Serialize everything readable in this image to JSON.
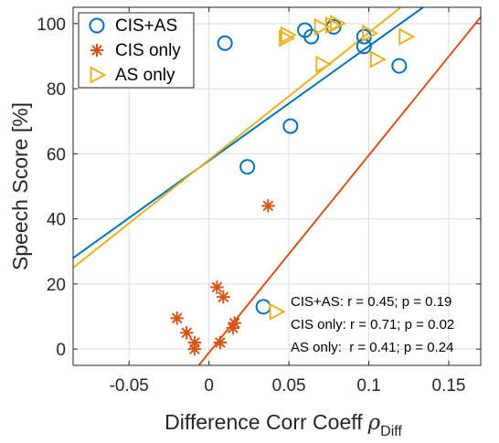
{
  "chart_data": {
    "type": "scatter",
    "title": "",
    "xlabel": "Difference Corr Coeff",
    "xlabel_symbol": "ρ",
    "xlabel_subscript": "Diff",
    "ylabel": "Speech Score [%]",
    "xlim": [
      -0.085,
      0.17
    ],
    "ylim": [
      -5,
      105
    ],
    "xticks": [
      -0.05,
      0,
      0.05,
      0.1,
      0.15
    ],
    "xtick_labels": [
      "-0.05",
      "0",
      "0.05",
      "0.1",
      "0.15"
    ],
    "yticks": [
      0,
      20,
      40,
      60,
      80,
      100
    ],
    "ytick_labels": [
      "0",
      "20",
      "40",
      "60",
      "80",
      "100"
    ],
    "grid": true,
    "legend_position": "top-left",
    "series": [
      {
        "name": "CIS+AS",
        "marker": "circle",
        "color": "#0072BD",
        "points": [
          {
            "x": 0.01,
            "y": 94
          },
          {
            "x": 0.06,
            "y": 98
          },
          {
            "x": 0.064,
            "y": 96
          },
          {
            "x": 0.078,
            "y": 99
          },
          {
            "x": 0.097,
            "y": 96
          },
          {
            "x": 0.097,
            "y": 93
          },
          {
            "x": 0.119,
            "y": 87
          },
          {
            "x": 0.051,
            "y": 68.5
          },
          {
            "x": 0.024,
            "y": 56
          },
          {
            "x": 0.034,
            "y": 13
          }
        ],
        "fit": {
          "x": [
            -0.085,
            0.134
          ],
          "y": [
            28,
            105
          ]
        }
      },
      {
        "name": "CIS only",
        "marker": "asterisk",
        "color": "#D95319",
        "points": [
          {
            "x": 0.037,
            "y": 44
          },
          {
            "x": 0.005,
            "y": 19
          },
          {
            "x": 0.009,
            "y": 16
          },
          {
            "x": -0.02,
            "y": 9.5
          },
          {
            "x": -0.014,
            "y": 5
          },
          {
            "x": 0.016,
            "y": 8
          },
          {
            "x": 0.015,
            "y": 6.5
          },
          {
            "x": 0.007,
            "y": 2
          },
          {
            "x": -0.009,
            "y": 2
          },
          {
            "x": -0.009,
            "y": 0
          }
        ],
        "fit": {
          "x": [
            -0.0064,
            0.17
          ],
          "y": [
            -5,
            102
          ]
        }
      },
      {
        "name": "AS only",
        "marker": "triangle-right",
        "color": "#EDB120",
        "points": [
          {
            "x": 0.048,
            "y": 95.5
          },
          {
            "x": 0.049,
            "y": 96.5
          },
          {
            "x": 0.07,
            "y": 99
          },
          {
            "x": 0.08,
            "y": 100
          },
          {
            "x": 0.077,
            "y": 99.5
          },
          {
            "x": 0.071,
            "y": 87.5
          },
          {
            "x": 0.1,
            "y": 97
          },
          {
            "x": 0.105,
            "y": 89
          },
          {
            "x": 0.123,
            "y": 96
          },
          {
            "x": 0.042,
            "y": 11.5
          }
        ],
        "fit": {
          "x": [
            -0.085,
            0.12
          ],
          "y": [
            25,
            105
          ]
        }
      }
    ],
    "annotations": [
      "CIS+AS: r = 0.45; p = 0.19",
      "CIS only: r = 0.71; p = 0.02",
      "AS only:  r = 0.41; p = 0.24"
    ]
  }
}
